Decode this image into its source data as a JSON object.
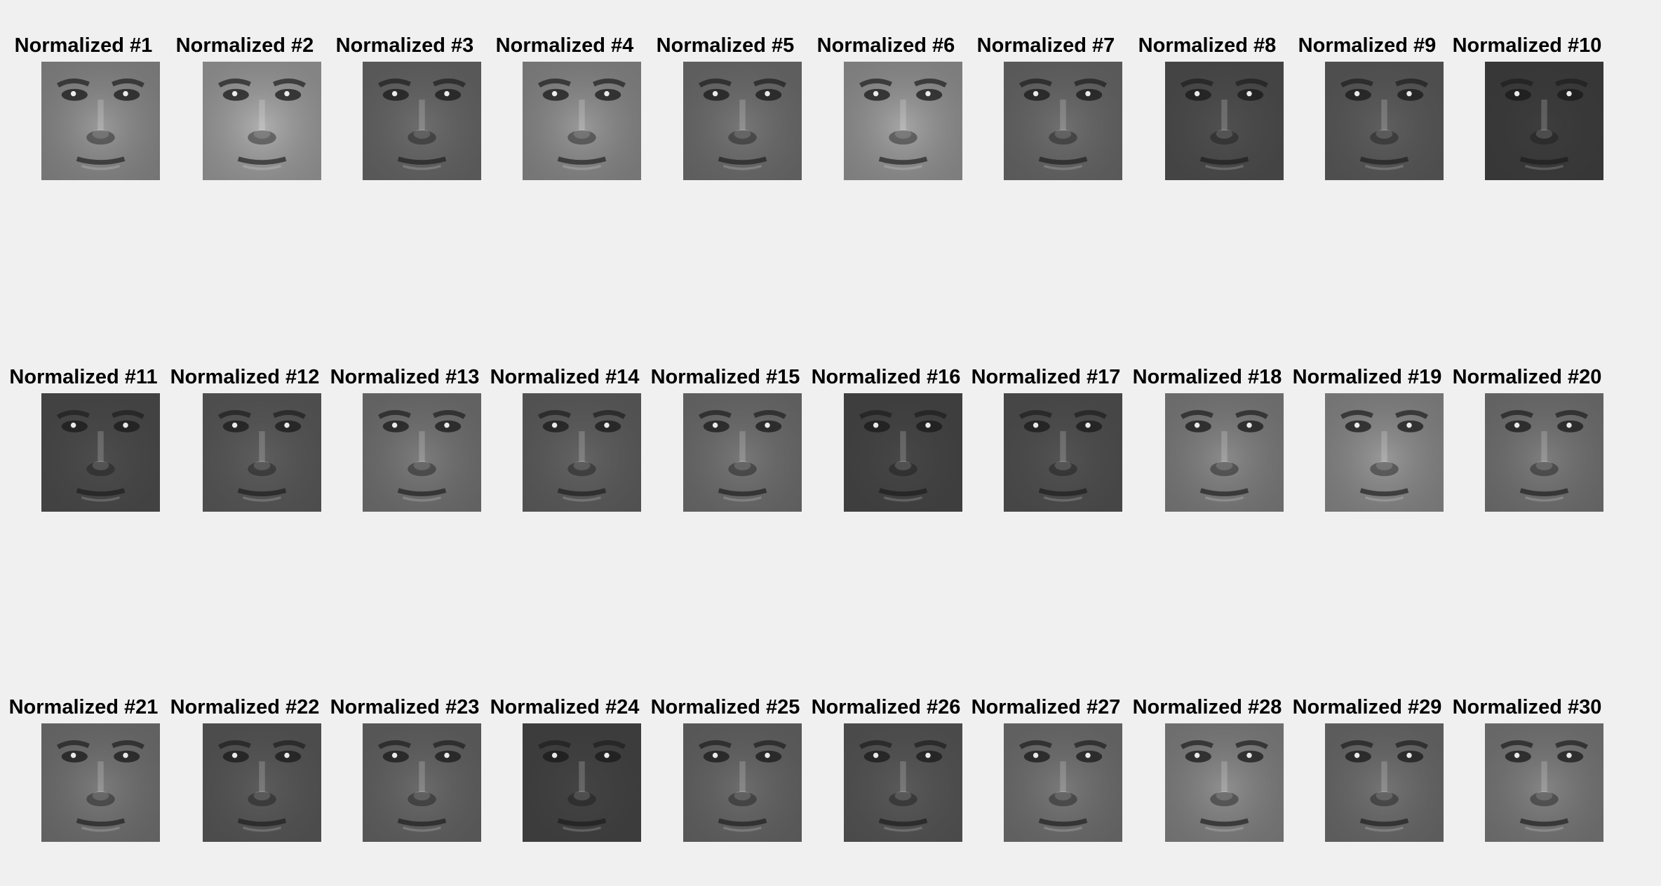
{
  "figure": {
    "background": "#f0f0f0"
  },
  "faces": [
    {
      "title": "Normalized #1",
      "tone": "#9a9a9a"
    },
    {
      "title": "Normalized #2",
      "tone": "#b0b0b0"
    },
    {
      "title": "Normalized #3",
      "tone": "#6e6e6e"
    },
    {
      "title": "Normalized #4",
      "tone": "#9a9a9a"
    },
    {
      "title": "Normalized #5",
      "tone": "#777777"
    },
    {
      "title": "Normalized #6",
      "tone": "#a6a6a6"
    },
    {
      "title": "Normalized #7",
      "tone": "#707070"
    },
    {
      "title": "Normalized #8",
      "tone": "#505050"
    },
    {
      "title": "Normalized #9",
      "tone": "#5f5f5f"
    },
    {
      "title": "Normalized #10",
      "tone": "#3d3d3d"
    },
    {
      "title": "Normalized #11",
      "tone": "#4d4d4d"
    },
    {
      "title": "Normalized #12",
      "tone": "#5e5e5e"
    },
    {
      "title": "Normalized #13",
      "tone": "#7d7d7d"
    },
    {
      "title": "Normalized #14",
      "tone": "#646464"
    },
    {
      "title": "Normalized #15",
      "tone": "#787878"
    },
    {
      "title": "Normalized #16",
      "tone": "#474747"
    },
    {
      "title": "Normalized #17",
      "tone": "#535353"
    },
    {
      "title": "Normalized #18",
      "tone": "#8b8b8b"
    },
    {
      "title": "Normalized #19",
      "tone": "#999999"
    },
    {
      "title": "Normalized #20",
      "tone": "#7e7e7e"
    },
    {
      "title": "Normalized #21",
      "tone": "#7c7c7c"
    },
    {
      "title": "Normalized #22",
      "tone": "#5c5c5c"
    },
    {
      "title": "Normalized #23",
      "tone": "#6b6b6b"
    },
    {
      "title": "Normalized #24",
      "tone": "#444444"
    },
    {
      "title": "Normalized #25",
      "tone": "#6d6d6d"
    },
    {
      "title": "Normalized #26",
      "tone": "#5a5a5a"
    },
    {
      "title": "Normalized #27",
      "tone": "#7a7a7a"
    },
    {
      "title": "Normalized #28",
      "tone": "#909090"
    },
    {
      "title": "Normalized #29",
      "tone": "#747474"
    },
    {
      "title": "Normalized #30",
      "tone": "#858585"
    }
  ]
}
